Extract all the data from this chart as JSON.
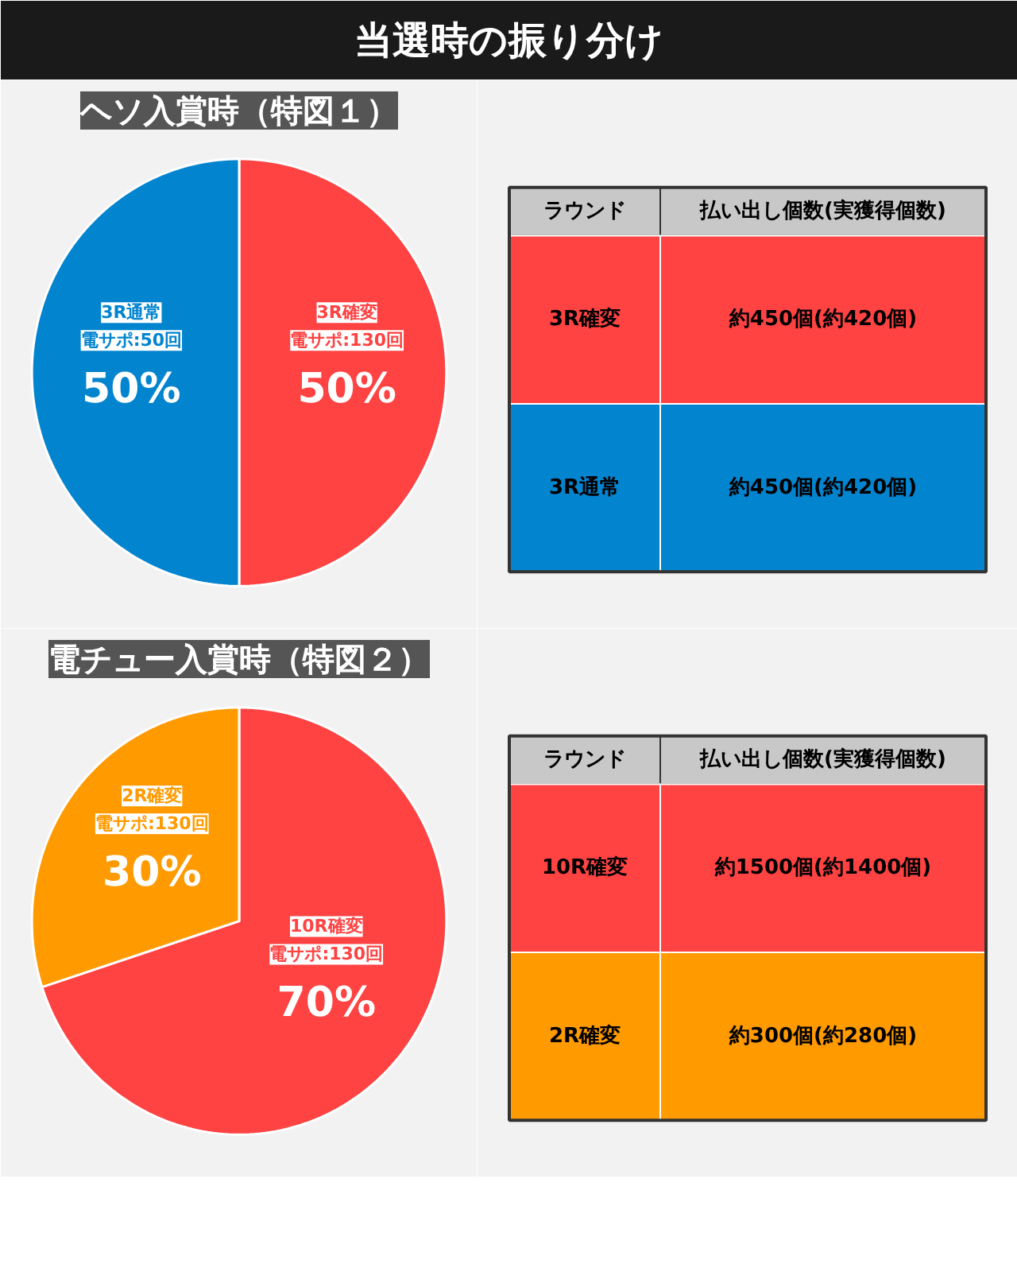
{
  "chart_data": [
    {
      "type": "other",
      "title": "当選時の振り分け"
    },
    {
      "type": "pie",
      "title": "ヘソ入賞時（特図１）",
      "categories": [
        "3R確変",
        "3R通常"
      ],
      "annotations": [
        "電サポ:130回",
        "電サポ:50回"
      ],
      "values": [
        50,
        50
      ],
      "colors": [
        "#ff4343",
        "#0384cf"
      ],
      "value_labels": [
        "50%",
        "50%"
      ]
    },
    {
      "type": "other",
      "annotations": [
        "ラウンド",
        "払い出し個数(実獲得個数)",
        "3R確変",
        "約450個(約420個)",
        "3R通常",
        "約450個(約420個)"
      ],
      "colors": [
        "#c8c8c8",
        "#ff4343",
        "#0384cf"
      ]
    },
    {
      "type": "pie",
      "title": "電チュー入賞時（特図２）",
      "categories": [
        "10R確変",
        "2R確変"
      ],
      "annotations": [
        "電サポ:130回",
        "電サポ:130回"
      ],
      "values": [
        70,
        30
      ],
      "colors": [
        "#ff4343",
        "#ff9a00"
      ],
      "value_labels": [
        "70%",
        "30%"
      ]
    },
    {
      "type": "other",
      "annotations": [
        "ラウンド",
        "払い出し個数(実獲得個数)",
        "10R確変",
        "約1500個(約1400個)",
        "2R確変",
        "約300個(約280個)"
      ],
      "colors": [
        "#c8c8c8",
        "#ff4343",
        "#ff9a00"
      ]
    }
  ]
}
